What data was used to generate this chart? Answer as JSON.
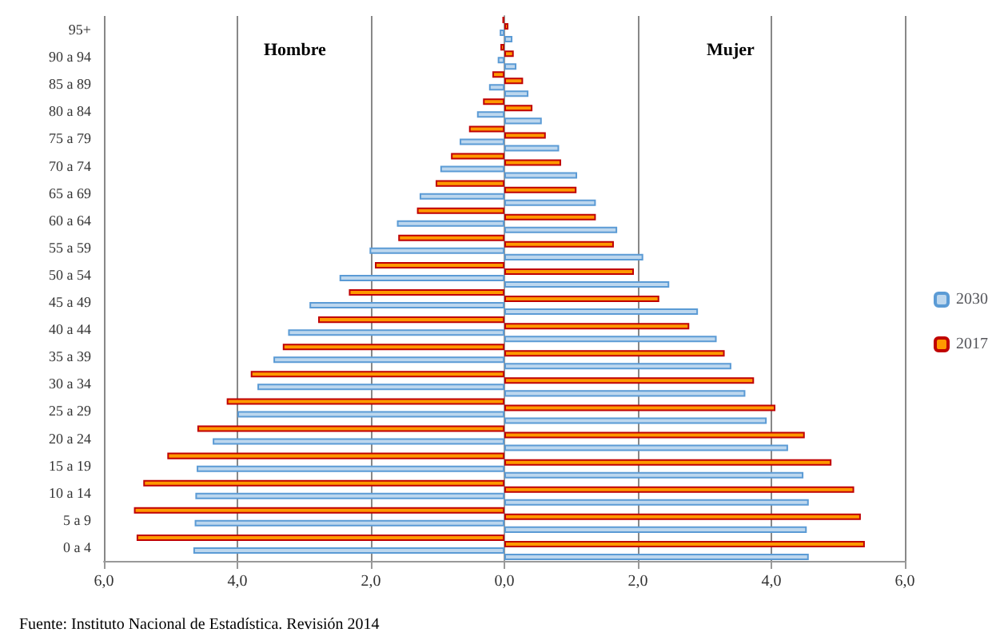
{
  "chart_data": {
    "type": "bar",
    "orientation": "horizontal",
    "annotations": [
      "Hombre",
      "Mujer",
      "Fuente: Instituto Nacional de Estadística. Revisión 2014"
    ],
    "categories": [
      "95+",
      "90 a 94",
      "85 a 89",
      "80 a 84",
      "75 a 79",
      "70 a 74",
      "65 a 69",
      "60 a 64",
      "55 a 59",
      "50 a 54",
      "45 a 49",
      "40 a 44",
      "35 a 39",
      "30 a 34",
      "25 a 29",
      "20 a 24",
      "15 a 19",
      "10 a 14",
      "5 a 9",
      "0 a 4"
    ],
    "series": [
      {
        "name": "2017",
        "color": "#ff9900",
        "values": [
          -0.03,
          -0.06,
          -0.18,
          -0.32,
          -0.53,
          -0.8,
          -1.03,
          -1.31,
          -1.59,
          -1.94,
          -2.33,
          -2.79,
          -3.32,
          -3.8,
          -4.16,
          -4.6,
          -5.05,
          -5.41,
          -5.55,
          -5.51
        ]
      },
      {
        "color": "#ff9900",
        "values": [
          0.06,
          0.14,
          0.28,
          0.42,
          0.62,
          0.85,
          1.08,
          1.37,
          1.64,
          1.94,
          2.32,
          2.77,
          3.3,
          3.74,
          4.06,
          4.5,
          4.9,
          5.24,
          5.34,
          5.4
        ]
      },
      {
        "name": "2030",
        "color": "#bdd7ee",
        "values": [
          -0.07,
          -0.1,
          -0.23,
          -0.41,
          -0.67,
          -0.96,
          -1.27,
          -1.61,
          -2.02,
          -2.47,
          -2.92,
          -3.24,
          -3.46,
          -3.7,
          -4.0,
          -4.37,
          -4.61,
          -4.63,
          -4.64,
          -4.66
        ]
      },
      {
        "color": "#bdd7ee",
        "values": [
          0.12,
          0.18,
          0.36,
          0.56,
          0.82,
          1.09,
          1.37,
          1.69,
          2.08,
          2.47,
          2.9,
          3.18,
          3.4,
          3.61,
          3.93,
          4.25,
          4.48,
          4.56,
          4.53,
          4.56
        ]
      }
    ],
    "xlim": [
      -6,
      6
    ],
    "xticks": [
      {
        "value": -6,
        "label": "6,0"
      },
      {
        "value": -4,
        "label": "4,0"
      },
      {
        "value": -2,
        "label": "2,0"
      },
      {
        "value": 0,
        "label": "0,0"
      },
      {
        "value": 2,
        "label": "2,0"
      },
      {
        "value": 4,
        "label": "4,0"
      },
      {
        "value": 6,
        "label": "6,0"
      }
    ],
    "grid": "x",
    "legend": "right"
  }
}
